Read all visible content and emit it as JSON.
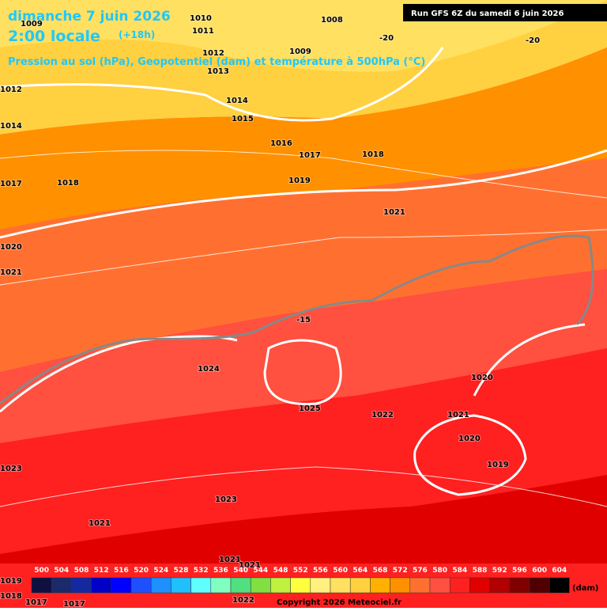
{
  "header": {
    "date": "dimanche 7 juin 2026",
    "time": "2:00 locale",
    "offset": "(+18h)",
    "subtitle": "Pression au sol (hPa), Geopotentiel (dam) et température à 500hPa (°C)",
    "run": "Run GFS 6Z du samedi 6 juin 2026"
  },
  "isobar_labels": [
    "1009",
    "1010",
    "1011",
    "1008",
    "1009",
    "1012",
    "1013",
    "1014",
    "1015",
    "1016",
    "1017",
    "1018",
    "1019",
    "1021",
    "1018",
    "1017",
    "1014",
    "1012",
    "1020",
    "1021",
    "1024",
    "1025",
    "1022",
    "1021",
    "1020",
    "1020",
    "1019",
    "1023",
    "1023",
    "1021",
    "1021",
    "1021",
    "1022",
    "1019",
    "1018",
    "1017",
    "1017"
  ],
  "temperature_labels": [
    "-20",
    "-20",
    "-15"
  ],
  "legend": {
    "unit": "(dam)",
    "values": [
      500,
      504,
      508,
      512,
      516,
      520,
      524,
      528,
      532,
      536,
      540,
      544,
      548,
      552,
      556,
      560,
      564,
      568,
      572,
      576,
      580,
      584,
      588,
      592,
      596,
      600,
      604
    ],
    "colors": [
      "#101040",
      "#1a2a6a",
      "#1428a0",
      "#0000c8",
      "#0000ff",
      "#1e50ff",
      "#1e90ff",
      "#20c0ff",
      "#60ffff",
      "#80ffc0",
      "#50e080",
      "#80e040",
      "#c0f040",
      "#ffff40",
      "#fff080",
      "#ffe060",
      "#ffd040",
      "#ffb000",
      "#ff9000",
      "#ff7030",
      "#ff5040",
      "#ff2020",
      "#e00000",
      "#b00000",
      "#800000",
      "#500000",
      "#000000"
    ]
  },
  "copyright": "Copyright 2026 Meteociel.fr"
}
